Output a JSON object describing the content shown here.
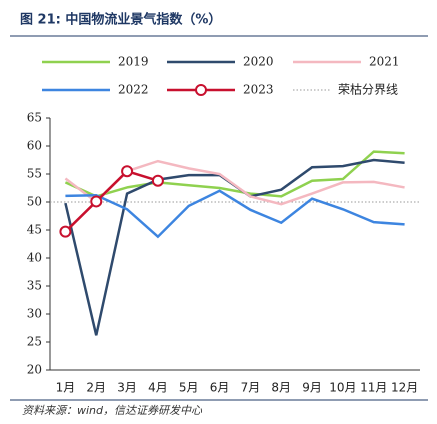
{
  "chart_data": {
    "type": "line",
    "title": "图 21: 中国物流业景气指数（%）",
    "source": "资料来源：wind，信达证券研发中心",
    "categories": [
      "1月",
      "2月",
      "3月",
      "4月",
      "5月",
      "6月",
      "7月",
      "8月",
      "9月",
      "10月",
      "11月",
      "12月"
    ],
    "series": [
      {
        "name": "2019",
        "color": "#8fd14f",
        "values": [
          53.5,
          51.0,
          52.6,
          53.5,
          53.0,
          52.5,
          51.5,
          51.0,
          53.8,
          54.1,
          59.0,
          58.7
        ]
      },
      {
        "name": "2020",
        "color": "#2f4a6d",
        "values": [
          49.8,
          26.2,
          51.5,
          54.0,
          54.8,
          54.8,
          51.0,
          52.2,
          56.2,
          56.4,
          57.5,
          57.0
        ]
      },
      {
        "name": "2021",
        "color": "#f4b8c0",
        "values": [
          54.2,
          50.0,
          55.5,
          57.3,
          56.0,
          55.0,
          51.0,
          49.6,
          51.5,
          53.5,
          53.6,
          52.6
        ]
      },
      {
        "name": "2022",
        "color": "#3d85e0",
        "values": [
          51.1,
          51.2,
          48.7,
          43.8,
          49.3,
          52.0,
          48.6,
          46.3,
          50.6,
          48.7,
          46.4,
          46.0
        ]
      },
      {
        "name": "2023",
        "color": "#c8102e",
        "markers": true,
        "values": [
          44.7,
          50.1,
          55.5,
          53.8,
          null,
          null,
          null,
          null,
          null,
          null,
          null,
          null
        ]
      }
    ],
    "reference": {
      "label": "荣枯分界线",
      "value": 50,
      "color": "#999999"
    },
    "ylim": [
      20,
      65
    ],
    "yticks": [
      20,
      25,
      30,
      35,
      40,
      45,
      50,
      55,
      60,
      65
    ]
  }
}
